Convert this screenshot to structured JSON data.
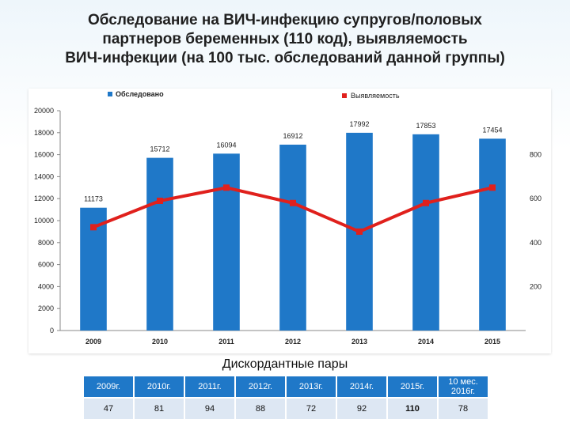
{
  "title": "Обследование на ВИЧ-инфекцию супругов/половых\nпартнеров беременных (110 код), выявляемость\nВИЧ-инфекции (на 100 тыс. обследований  данной группы)",
  "caption": "Дискордантные пары",
  "colors": {
    "bars": "#1f78c8",
    "line": "#e0201c",
    "table_header": "#1f78c8",
    "table_cell": "#dde7f3"
  },
  "chart_data": {
    "type": "bar+line",
    "categories": [
      "2009",
      "2010",
      "2011",
      "2012",
      "2013",
      "2014",
      "2015"
    ],
    "series": [
      {
        "name": "Обследовано",
        "type": "bar",
        "axis": "left",
        "values": [
          11173,
          15712,
          16094,
          16912,
          17992,
          17853,
          17454
        ],
        "labels": [
          "11173",
          "15712",
          "16094",
          "16912",
          "17992",
          "17853",
          "17454"
        ]
      },
      {
        "name": "Выявляемость",
        "type": "line",
        "axis": "right",
        "values": [
          470,
          590,
          650,
          580,
          450,
          580,
          650
        ]
      }
    ],
    "y_left": {
      "range": [
        0,
        20000
      ],
      "ticks": [
        "0",
        "2000",
        "4000",
        "6000",
        "8000",
        "10000",
        "12000",
        "14000",
        "16000",
        "18000",
        "20000"
      ]
    },
    "y_right": {
      "range": [
        0,
        1000
      ],
      "ticks": [
        "200",
        "400",
        "600",
        "800"
      ]
    },
    "legend_position": "top",
    "grid": false
  },
  "table": {
    "headers": [
      "2009г.",
      "2010г.",
      "2011г.",
      "2012г.",
      "2013г.",
      "2014г.",
      "2015г.",
      "10 мес.\n2016г."
    ],
    "values": [
      "47",
      "81",
      "94",
      "88",
      "72",
      "92",
      "110",
      "78"
    ]
  }
}
